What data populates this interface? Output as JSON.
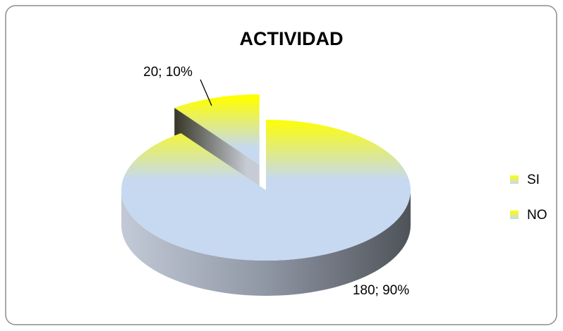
{
  "chart_data": {
    "type": "pie3d",
    "title": "ACTIVIDAD",
    "categories": [
      "SI",
      "NO"
    ],
    "values": [
      180,
      20
    ],
    "value_labels": [
      "180; 90%",
      "20; 10%"
    ],
    "colors": [
      "#ffff00",
      "#c6d9f1"
    ],
    "legend": "right"
  }
}
